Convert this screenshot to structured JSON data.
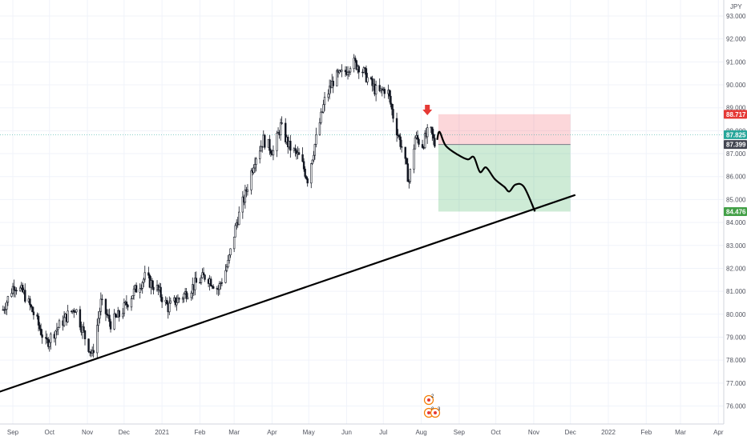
{
  "chart_data": {
    "type": "candlestick",
    "currency": "JPY",
    "y_axis": {
      "range": [
        75.7,
        93.3
      ],
      "ticks": [
        "76.000",
        "77.000",
        "78.000",
        "79.000",
        "80.000",
        "81.000",
        "82.000",
        "83.000",
        "84.000",
        "85.000",
        "86.000",
        "87.000",
        "88.000",
        "89.000",
        "90.000",
        "91.000",
        "92.000",
        "93.000"
      ]
    },
    "x_axis": {
      "ticks": [
        "Sep",
        "Oct",
        "Nov",
        "Dec",
        "2021",
        "Feb",
        "Mar",
        "Apr",
        "May",
        "Jun",
        "Jul",
        "Aug",
        "Sep",
        "Oct",
        "Nov",
        "Dec",
        "2022",
        "Feb",
        "Mar",
        "Apr"
      ]
    },
    "price_path": [
      [
        "2020-08-24",
        80.2
      ],
      [
        "2020-09-02",
        81.3
      ],
      [
        "2020-09-10",
        80.9
      ],
      [
        "2020-09-20",
        79.8
      ],
      [
        "2020-09-28",
        78.7
      ],
      [
        "2020-10-06",
        79.3
      ],
      [
        "2020-10-15",
        79.9
      ],
      [
        "2020-10-22",
        80.3
      ],
      [
        "2020-10-30",
        79.0
      ],
      [
        "2020-11-05",
        78.2
      ],
      [
        "2020-11-12",
        80.5
      ],
      [
        "2020-11-20",
        79.6
      ],
      [
        "2020-11-28",
        80.0
      ],
      [
        "2020-12-08",
        80.9
      ],
      [
        "2020-12-18",
        81.6
      ],
      [
        "2020-12-28",
        81.1
      ],
      [
        "2021-01-06",
        80.3
      ],
      [
        "2021-01-18",
        80.8
      ],
      [
        "2021-01-28",
        81.3
      ],
      [
        "2021-02-06",
        81.7
      ],
      [
        "2021-02-16",
        81.1
      ],
      [
        "2021-02-24",
        82.2
      ],
      [
        "2021-03-03",
        84.0
      ],
      [
        "2021-03-10",
        85.2
      ],
      [
        "2021-03-18",
        86.8
      ],
      [
        "2021-03-25",
        87.6
      ],
      [
        "2021-04-02",
        87.1
      ],
      [
        "2021-04-08",
        88.2
      ],
      [
        "2021-04-15",
        87.3
      ],
      [
        "2021-04-24",
        86.8
      ],
      [
        "2021-04-30",
        85.9
      ],
      [
        "2021-05-06",
        87.4
      ],
      [
        "2021-05-14",
        89.3
      ],
      [
        "2021-05-22",
        90.3
      ],
      [
        "2021-05-30",
        90.5
      ],
      [
        "2021-06-05",
        91.0
      ],
      [
        "2021-06-12",
        90.8
      ],
      [
        "2021-06-20",
        90.1
      ],
      [
        "2021-06-27",
        89.6
      ],
      [
        "2021-07-04",
        89.9
      ],
      [
        "2021-07-10",
        88.4
      ],
      [
        "2021-07-16",
        87.3
      ],
      [
        "2021-07-22",
        85.8
      ],
      [
        "2021-07-27",
        87.7
      ],
      [
        "2021-08-02",
        87.4
      ],
      [
        "2021-08-08",
        88.1
      ],
      [
        "2021-08-12",
        87.4
      ]
    ],
    "projection_path": [
      [
        "2021-08-14",
        87.6
      ],
      [
        "2021-08-16",
        87.95
      ],
      [
        "2021-08-21",
        87.35
      ],
      [
        "2021-08-31",
        86.95
      ],
      [
        "2021-09-08",
        86.75
      ],
      [
        "2021-09-13",
        86.85
      ],
      [
        "2021-09-18",
        86.2
      ],
      [
        "2021-09-23",
        86.4
      ],
      [
        "2021-09-30",
        85.9
      ],
      [
        "2021-10-08",
        85.55
      ],
      [
        "2021-10-12",
        85.35
      ],
      [
        "2021-10-17",
        85.65
      ],
      [
        "2021-10-24",
        85.55
      ],
      [
        "2021-11-02",
        84.48
      ]
    ],
    "trendline": {
      "from": [
        "2020-08-20",
        76.6
      ],
      "to": [
        "2021-12-05",
        85.2
      ]
    },
    "position": {
      "side": "short",
      "start": "2021-08-15",
      "end": "2021-12-01",
      "stop": 88.717,
      "entry": 87.399,
      "target": 84.476
    },
    "price_tags": [
      {
        "label": "88.717",
        "value": 88.717,
        "color": "#e53935"
      },
      {
        "label": "87.825",
        "value": 87.825,
        "color": "#26a69a"
      },
      {
        "label": "87.399",
        "value": 87.399,
        "color": "#434651"
      },
      {
        "label": "84.476",
        "value": 84.476,
        "color": "#43a047"
      }
    ],
    "last_price": 87.825,
    "sell_marker": {
      "date": "2021-08-06",
      "value": 88.85,
      "color": "#e53935"
    },
    "event_badges": [
      {
        "label": "2"
      },
      {
        "label": "8"
      },
      {
        "label": "3"
      }
    ]
  }
}
